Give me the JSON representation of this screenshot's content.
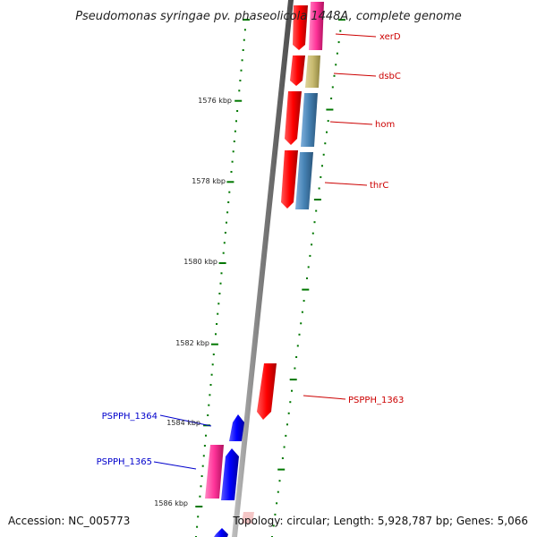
{
  "title": "Pseudomonas syringae pv. phaseolicola 1448A, complete genome",
  "footer": {
    "accession": "Accession: NC_005773",
    "topology": "Topology: circular; Length: 5,928,787 bp; Genes: 5,066"
  },
  "scale_labels": [
    "1576 kbp",
    "1578 kbp",
    "1580 kbp",
    "1582 kbp",
    "1584 kbp",
    "1586 kbp"
  ],
  "genes": [
    {
      "label": "xerD",
      "color": "#cc0000"
    },
    {
      "label": "dsbC",
      "color": "#cc0000"
    },
    {
      "label": "hom",
      "color": "#cc0000"
    },
    {
      "label": "thrC",
      "color": "#cc0000"
    },
    {
      "label": "PSPPH_1363",
      "color": "#cc0000"
    },
    {
      "label": "PSPPH_1364",
      "color": "#0000cc"
    },
    {
      "label": "PSPPH_1365",
      "color": "#0000cc"
    }
  ],
  "colors": {
    "forward_gene": "#ff0000",
    "reverse_gene": "#0000ff",
    "pink_gene": "#ff3399",
    "khaki_gene": "#c8bb70",
    "steelblue_gene": "#4682b4",
    "backbone": "#808080",
    "tick": "#007700"
  }
}
